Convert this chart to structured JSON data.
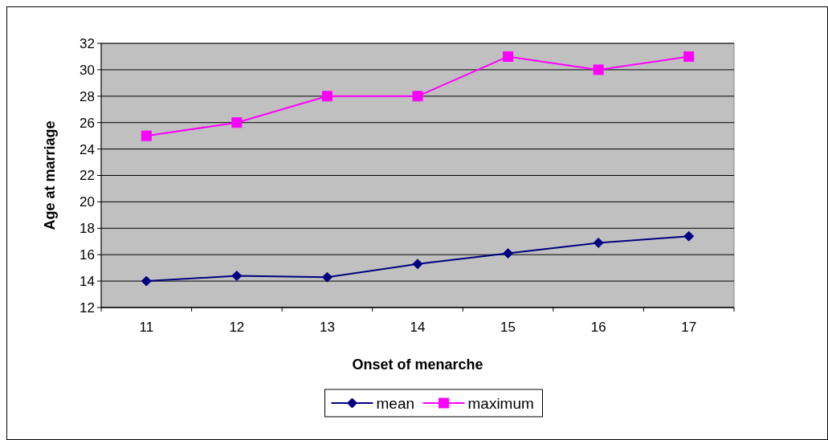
{
  "chart_data": {
    "type": "line",
    "xlabel": "Onset of menarche",
    "ylabel": "Age at marriage",
    "categories": [
      "11",
      "12",
      "13",
      "14",
      "15",
      "16",
      "17"
    ],
    "series": [
      {
        "name": "mean",
        "color": "#000080",
        "marker": "diamond",
        "values": [
          14.0,
          14.4,
          14.3,
          15.3,
          16.1,
          16.9,
          17.4
        ]
      },
      {
        "name": "maximum",
        "color": "#ff00ff",
        "marker": "square",
        "values": [
          25,
          26,
          28,
          28,
          31,
          30,
          31
        ]
      }
    ],
    "ylim": [
      12,
      32
    ],
    "yticks": [
      12,
      14,
      16,
      18,
      20,
      22,
      24,
      26,
      28,
      30,
      32
    ],
    "grid": "y",
    "legend": "bottom",
    "line_style": "solid"
  }
}
